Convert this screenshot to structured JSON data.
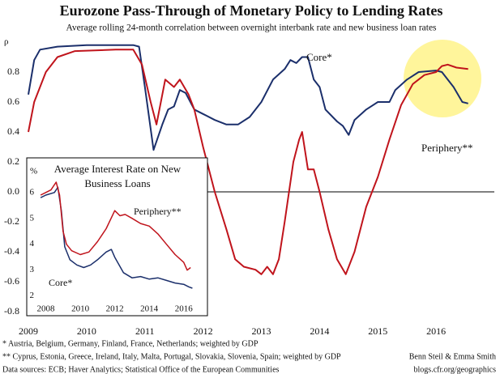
{
  "chart_data": [
    {
      "type": "line",
      "title": "Eurozone Pass-Through of Monetary Policy to Lending Rates",
      "subtitle": "Average rolling 24-month correlation between overnight interbank rate and new business loan rates",
      "y_label": "ρ",
      "xlim": [
        2009,
        2017
      ],
      "xticks": [
        2009,
        2010,
        2011,
        2012,
        2013,
        2014,
        2015,
        2016
      ],
      "ylim": [
        -0.8,
        1.0
      ],
      "yticks": [
        -0.8,
        -0.6,
        -0.4,
        -0.2,
        {
          "value": 0,
          "label": "0.0"
        },
        0.2,
        0.4,
        0.6,
        0.8
      ],
      "zero_line": true,
      "series": [
        {
          "name": "Core*",
          "color": "#1b2f6b",
          "x": [
            2009.0,
            2009.1,
            2009.2,
            2009.5,
            2010.0,
            2010.5,
            2010.8,
            2010.9,
            2011.0,
            2011.15,
            2011.3,
            2011.4,
            2011.5,
            2011.6,
            2011.7,
            2011.85,
            2012.0,
            2012.2,
            2012.4,
            2012.6,
            2012.8,
            2013.0,
            2013.2,
            2013.4,
            2013.5,
            2013.6,
            2013.7,
            2013.8,
            2013.9,
            2014.0,
            2014.1,
            2014.3,
            2014.4,
            2014.5,
            2014.6,
            2014.8,
            2015.0,
            2015.2,
            2015.3,
            2015.5,
            2015.7,
            2016.0,
            2016.1,
            2016.3,
            2016.45,
            2016.55
          ],
          "values": [
            0.65,
            0.88,
            0.95,
            0.97,
            0.98,
            0.98,
            0.98,
            0.97,
            0.7,
            0.28,
            0.45,
            0.55,
            0.57,
            0.68,
            0.66,
            0.55,
            0.52,
            0.48,
            0.45,
            0.45,
            0.5,
            0.6,
            0.75,
            0.82,
            0.88,
            0.86,
            0.9,
            0.9,
            0.75,
            0.7,
            0.55,
            0.47,
            0.44,
            0.38,
            0.48,
            0.55,
            0.6,
            0.6,
            0.68,
            0.75,
            0.8,
            0.81,
            0.8,
            0.7,
            0.6,
            0.59
          ]
        },
        {
          "name": "Periphery**",
          "color": "#c0141c",
          "x": [
            2009.0,
            2009.1,
            2009.3,
            2009.5,
            2009.8,
            2010.5,
            2010.8,
            2010.95,
            2011.1,
            2011.2,
            2011.35,
            2011.5,
            2011.6,
            2011.75,
            2011.85,
            2012.0,
            2012.2,
            2012.4,
            2012.55,
            2012.7,
            2012.9,
            2013.0,
            2013.1,
            2013.2,
            2013.3,
            2013.4,
            2013.55,
            2013.65,
            2013.7,
            2013.8,
            2013.9,
            2014.0,
            2014.15,
            2014.3,
            2014.45,
            2014.6,
            2014.8,
            2015.0,
            2015.2,
            2015.4,
            2015.6,
            2015.8,
            2016.0,
            2016.1,
            2016.2,
            2016.35,
            2016.55
          ],
          "values": [
            0.4,
            0.6,
            0.8,
            0.9,
            0.94,
            0.95,
            0.95,
            0.85,
            0.6,
            0.45,
            0.75,
            0.7,
            0.75,
            0.65,
            0.55,
            0.3,
            0.0,
            -0.25,
            -0.45,
            -0.5,
            -0.52,
            -0.55,
            -0.5,
            -0.55,
            -0.45,
            -0.2,
            0.2,
            0.35,
            0.4,
            0.15,
            0.15,
            0.0,
            -0.25,
            -0.45,
            -0.55,
            -0.4,
            -0.1,
            0.1,
            0.35,
            0.58,
            0.72,
            0.78,
            0.8,
            0.84,
            0.85,
            0.83,
            0.82
          ]
        }
      ]
    },
    {
      "type": "line",
      "title": [
        "Average Interest Rate on New",
        "Business Loans"
      ],
      "y_label": "%",
      "xlim": [
        2007.6,
        2017
      ],
      "xticks": [
        2008,
        2010,
        2012,
        2014,
        2016
      ],
      "ylim": [
        1.8,
        6.4
      ],
      "yticks": [
        2,
        3,
        4,
        5,
        6
      ],
      "series": [
        {
          "name": "Core*",
          "color": "#1b2f6b",
          "x": [
            2007.7,
            2008.0,
            2008.5,
            2008.7,
            2008.9,
            2009.1,
            2009.4,
            2009.8,
            2010.2,
            2010.6,
            2011.0,
            2011.5,
            2011.8,
            2012.0,
            2012.5,
            2013.0,
            2013.5,
            2014.0,
            2014.5,
            2015.0,
            2015.5,
            2016.0,
            2016.3,
            2016.5
          ],
          "values": [
            5.8,
            5.9,
            6.0,
            6.2,
            5.3,
            3.9,
            3.4,
            3.2,
            3.1,
            3.2,
            3.4,
            3.7,
            3.8,
            3.5,
            2.9,
            2.7,
            2.75,
            2.65,
            2.7,
            2.6,
            2.5,
            2.45,
            2.35,
            2.3
          ]
        },
        {
          "name": "Periphery**",
          "color": "#c0141c",
          "x": [
            2007.7,
            2008.0,
            2008.3,
            2008.6,
            2008.8,
            2009.0,
            2009.2,
            2009.5,
            2010.0,
            2010.5,
            2011.0,
            2011.5,
            2012.0,
            2012.3,
            2012.6,
            2013.0,
            2013.5,
            2014.0,
            2014.5,
            2015.0,
            2015.5,
            2016.0,
            2016.2,
            2016.4
          ],
          "values": [
            5.9,
            6.0,
            6.1,
            6.4,
            5.9,
            4.5,
            4.0,
            3.75,
            3.6,
            3.7,
            4.1,
            4.6,
            5.3,
            5.1,
            5.15,
            5.0,
            4.8,
            4.7,
            4.4,
            4.0,
            3.6,
            3.3,
            3.0,
            3.1
          ]
        }
      ]
    }
  ],
  "notes": [
    "* Austria, Belgium, Germany, Finland, France, Netherlands; weighted by GDP",
    "** Cyprus, Estonia, Greece, Ireland, Italy, Malta, Portugal, Slovakia, Slovenia, Spain; weighted by GDP",
    "Data sources: ECB; Haver Analytics; Statistical Office of the European Communities"
  ],
  "credits": [
    "Benn Steil & Emma Smith",
    "blogs.cfr.org/geographics"
  ]
}
